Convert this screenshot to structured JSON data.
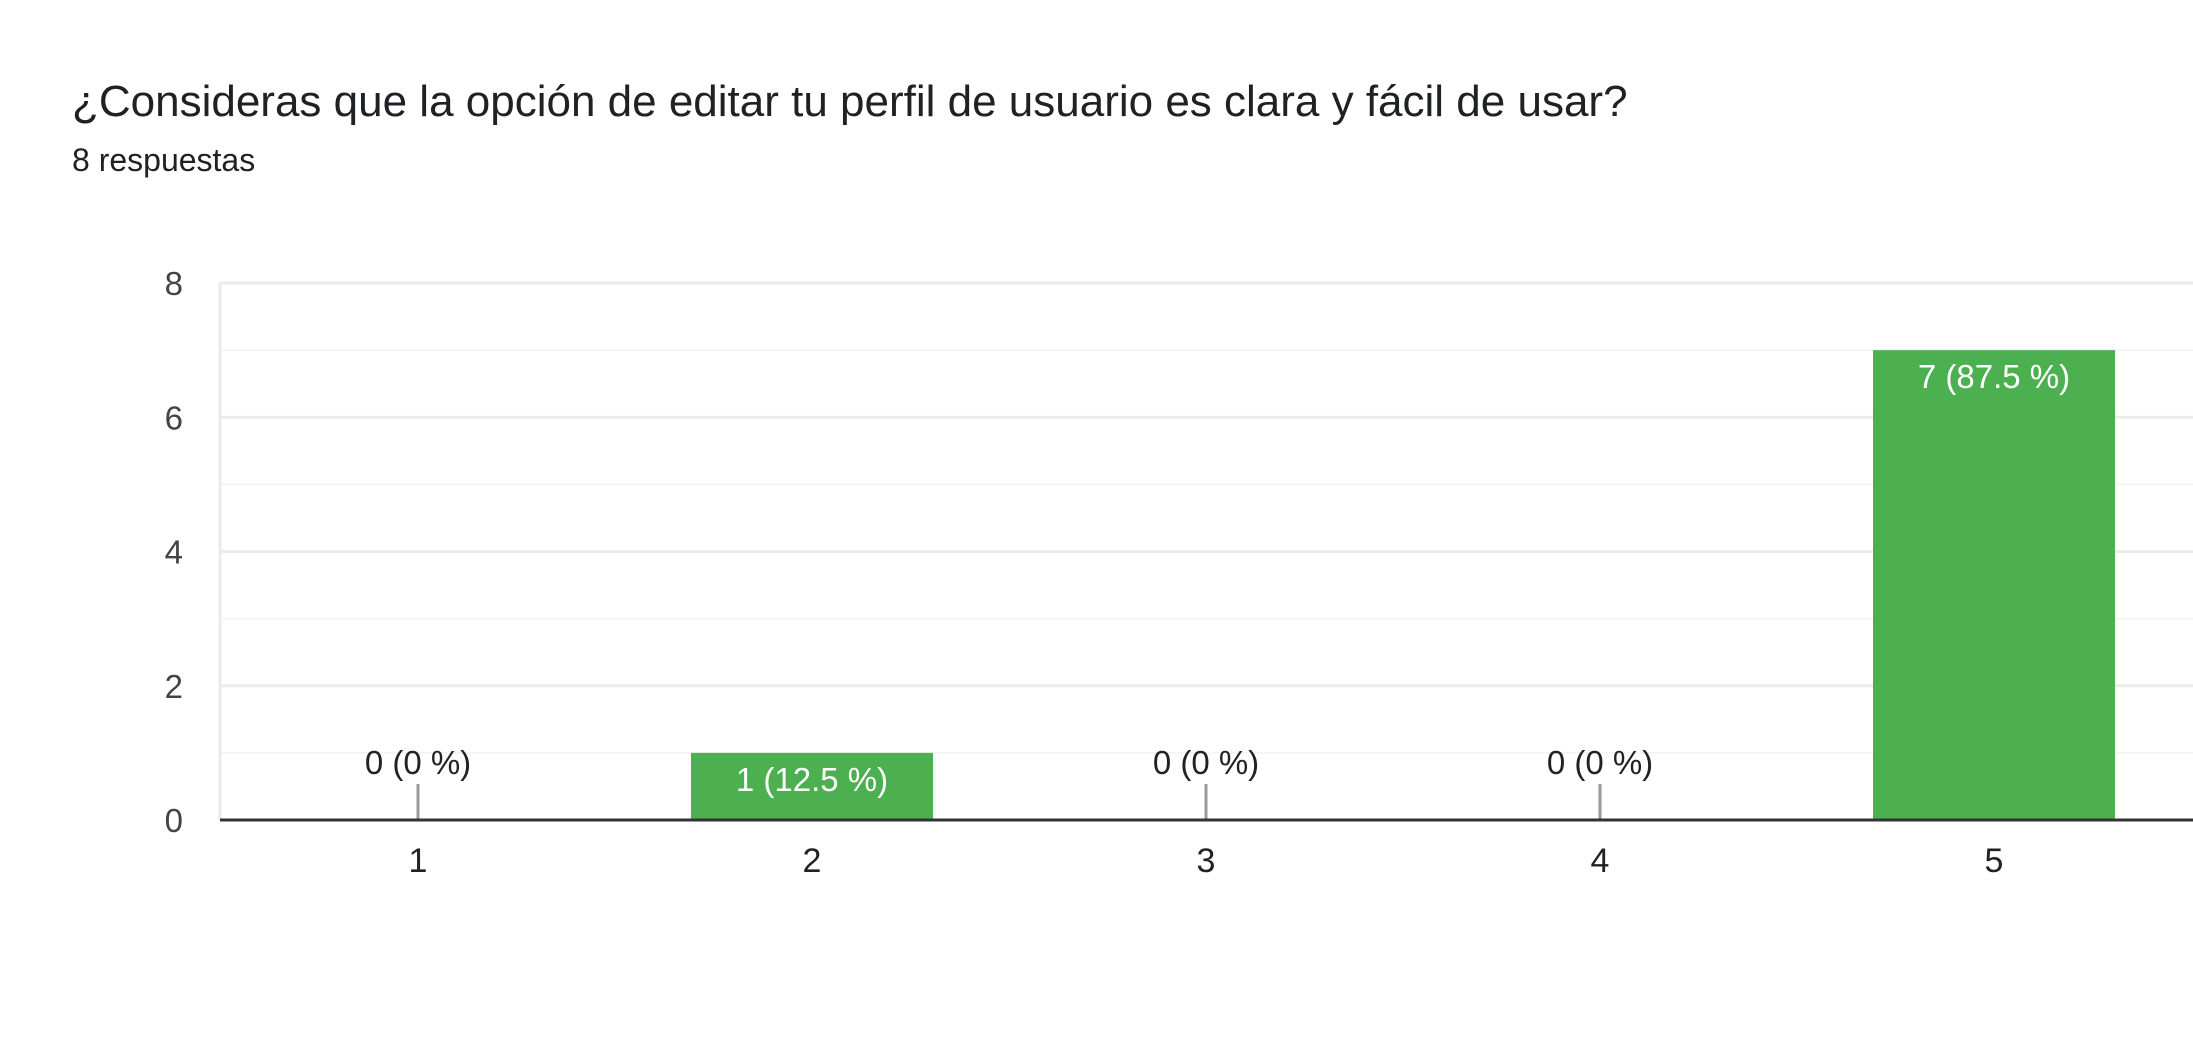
{
  "header": {
    "title": "¿Consideras que la opción de editar tu perfil de usuario es clara y fácil de usar?",
    "subtitle": "8 respuestas"
  },
  "colors": {
    "bar": "#4caf50",
    "gridline": "#ebebeb",
    "minor_gridline": "#f4f4f4",
    "axis": "#333333",
    "zero_marker": "#999999",
    "label_inside": "#ffffff",
    "label_outside": "#222222"
  },
  "chart_data": {
    "type": "bar",
    "categories": [
      "1",
      "2",
      "3",
      "4",
      "5"
    ],
    "values": [
      0,
      1,
      0,
      0,
      7
    ],
    "data_labels": [
      "0 (0 %)",
      "1 (12.5 %)",
      "0 (0 %)",
      "0 (0 %)",
      "7 (87.5 %)"
    ],
    "title": "",
    "xlabel": "",
    "ylabel": "",
    "ylim": [
      0,
      8
    ],
    "yticks": [
      0,
      2,
      4,
      6,
      8
    ],
    "grid": true,
    "legend": "none"
  }
}
